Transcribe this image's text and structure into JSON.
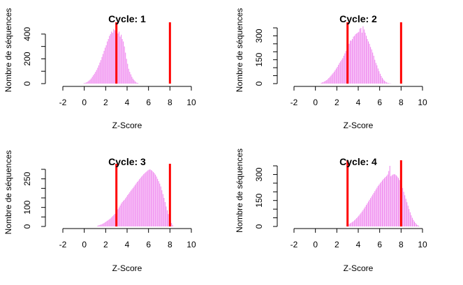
{
  "chart_data": [
    {
      "type": "bar",
      "title": "Cycle: 1",
      "xlabel": "Z-Score",
      "ylabel": "Nombre de séquences",
      "xlim": [
        -2,
        10
      ],
      "xticks": [
        -2,
        0,
        2,
        4,
        6,
        8,
        10
      ],
      "ylim": [
        0,
        450
      ],
      "yticks": [
        0,
        200,
        400
      ],
      "yticks_unlabeled": [
        100,
        300
      ],
      "bin_width": 0.1,
      "x": [
        -0.1,
        0.0,
        0.1,
        0.2,
        0.3,
        0.4,
        0.5,
        0.6,
        0.7,
        0.8,
        0.9,
        1.0,
        1.1,
        1.2,
        1.3,
        1.4,
        1.5,
        1.6,
        1.7,
        1.8,
        1.9,
        2.0,
        2.1,
        2.2,
        2.3,
        2.4,
        2.5,
        2.6,
        2.7,
        2.8,
        2.9,
        3.0,
        3.1,
        3.2,
        3.3,
        3.4,
        3.5,
        3.6,
        3.7,
        3.8,
        3.9,
        4.0,
        4.1,
        4.2,
        4.3,
        4.4,
        4.5,
        4.6,
        4.7,
        4.8,
        4.9,
        5.0
      ],
      "values": [
        3,
        5,
        8,
        12,
        18,
        25,
        32,
        42,
        55,
        68,
        80,
        95,
        110,
        128,
        148,
        170,
        190,
        215,
        240,
        265,
        290,
        310,
        340,
        360,
        385,
        400,
        420,
        410,
        440,
        430,
        415,
        440,
        405,
        420,
        380,
        395,
        360,
        340,
        300,
        250,
        200,
        160,
        120,
        95,
        75,
        55,
        40,
        28,
        18,
        10,
        6,
        3
      ],
      "thresholds": [
        3,
        8
      ],
      "threshold_color": "#ff0000",
      "bar_color": "#ee82ee"
    },
    {
      "type": "bar",
      "title": "Cycle: 2",
      "xlabel": "Z-Score",
      "ylabel": "Nombre de séquences",
      "xlim": [
        -2,
        10
      ],
      "xticks": [
        -2,
        0,
        2,
        4,
        6,
        8,
        10
      ],
      "ylim": [
        0,
        350
      ],
      "yticks": [
        0,
        150,
        300
      ],
      "yticks_unlabeled": [
        50,
        100,
        200,
        250,
        350
      ],
      "bin_width": 0.1,
      "x": [
        0.5,
        0.6,
        0.7,
        0.8,
        0.9,
        1.0,
        1.1,
        1.2,
        1.3,
        1.4,
        1.5,
        1.6,
        1.7,
        1.8,
        1.9,
        2.0,
        2.1,
        2.2,
        2.3,
        2.4,
        2.5,
        2.6,
        2.7,
        2.8,
        2.9,
        3.0,
        3.1,
        3.2,
        3.3,
        3.4,
        3.5,
        3.6,
        3.7,
        3.8,
        3.9,
        4.0,
        4.1,
        4.2,
        4.3,
        4.4,
        4.5,
        4.6,
        4.7,
        4.8,
        4.9,
        5.0,
        5.1,
        5.2,
        5.3,
        5.4,
        5.5,
        5.6,
        5.7,
        5.8,
        5.9,
        6.0,
        6.1,
        6.2,
        6.3,
        6.4,
        6.5,
        6.6,
        6.7,
        6.8,
        6.9,
        7.0
      ],
      "values": [
        5,
        8,
        10,
        14,
        18,
        22,
        28,
        35,
        42,
        50,
        58,
        66,
        75,
        85,
        95,
        105,
        118,
        130,
        140,
        150,
        160,
        175,
        190,
        205,
        215,
        225,
        250,
        270,
        270,
        280,
        295,
        300,
        310,
        315,
        320,
        325,
        345,
        350,
        320,
        360,
        340,
        320,
        300,
        280,
        265,
        250,
        230,
        215,
        195,
        175,
        150,
        130,
        115,
        95,
        78,
        62,
        48,
        36,
        26,
        18,
        12,
        8,
        5,
        3,
        2,
        1
      ],
      "thresholds": [
        3,
        8
      ],
      "threshold_color": "#ff0000",
      "bar_color": "#ee82ee"
    },
    {
      "type": "bar",
      "title": "Cycle: 3",
      "xlabel": "Z-Score",
      "ylabel": "Nombre de séquences",
      "xlim": [
        -2,
        10
      ],
      "xticks": [
        -2,
        0,
        2,
        4,
        6,
        8,
        10
      ],
      "ylim": [
        0,
        300
      ],
      "yticks": [
        0,
        100,
        250
      ],
      "yticks_unlabeled": [
        50,
        150,
        200,
        300
      ],
      "bin_width": 0.1,
      "x": [
        1.2,
        1.3,
        1.4,
        1.5,
        1.6,
        1.7,
        1.8,
        1.9,
        2.0,
        2.1,
        2.2,
        2.3,
        2.4,
        2.5,
        2.6,
        2.7,
        2.8,
        2.9,
        3.0,
        3.1,
        3.2,
        3.3,
        3.4,
        3.5,
        3.6,
        3.7,
        3.8,
        3.9,
        4.0,
        4.1,
        4.2,
        4.3,
        4.4,
        4.5,
        4.6,
        4.7,
        4.8,
        4.9,
        5.0,
        5.1,
        5.2,
        5.3,
        5.4,
        5.5,
        5.6,
        5.7,
        5.8,
        5.9,
        6.0,
        6.1,
        6.2,
        6.3,
        6.4,
        6.5,
        6.6,
        6.7,
        6.8,
        6.9,
        7.0,
        7.1,
        7.2,
        7.3,
        7.4,
        7.5,
        7.6,
        7.7,
        7.8,
        7.9,
        8.0,
        8.1,
        8.2
      ],
      "values": [
        4,
        6,
        8,
        10,
        12,
        15,
        18,
        22,
        26,
        30,
        34,
        38,
        42,
        48,
        54,
        60,
        66,
        72,
        80,
        90,
        100,
        110,
        120,
        128,
        135,
        140,
        148,
        156,
        165,
        172,
        180,
        188,
        195,
        202,
        210,
        218,
        226,
        234,
        240,
        248,
        255,
        262,
        268,
        275,
        280,
        285,
        290,
        295,
        298,
        300,
        296,
        292,
        286,
        280,
        272,
        262,
        250,
        238,
        225,
        210,
        190,
        170,
        150,
        128,
        105,
        85,
        65,
        45,
        30,
        18,
        8
      ],
      "thresholds": [
        3,
        8
      ],
      "threshold_color": "#ff0000",
      "bar_color": "#ee82ee"
    },
    {
      "type": "bar",
      "title": "Cycle: 4",
      "xlabel": "Z-Score",
      "ylabel": "Nombre de séquences",
      "xlim": [
        -2,
        10
      ],
      "xticks": [
        -2,
        0,
        2,
        4,
        6,
        8,
        10
      ],
      "ylim": [
        0,
        350
      ],
      "yticks": [
        0,
        150,
        300
      ],
      "yticks_unlabeled": [
        50,
        100,
        200,
        250,
        350
      ],
      "bin_width": 0.1,
      "x": [
        3.0,
        3.1,
        3.2,
        3.3,
        3.4,
        3.5,
        3.6,
        3.7,
        3.8,
        3.9,
        4.0,
        4.1,
        4.2,
        4.3,
        4.4,
        4.5,
        4.6,
        4.7,
        4.8,
        4.9,
        5.0,
        5.1,
        5.2,
        5.3,
        5.4,
        5.5,
        5.6,
        5.7,
        5.8,
        5.9,
        6.0,
        6.1,
        6.2,
        6.3,
        6.4,
        6.5,
        6.6,
        6.7,
        6.8,
        6.9,
        7.0,
        7.1,
        7.2,
        7.3,
        7.4,
        7.5,
        7.6,
        7.7,
        7.8,
        7.9,
        8.0,
        8.1,
        8.2,
        8.3,
        8.4,
        8.5,
        8.6,
        8.7,
        8.8,
        8.9,
        9.0,
        9.1,
        9.2,
        9.3,
        9.4,
        9.5,
        9.6
      ],
      "values": [
        10,
        14,
        18,
        22,
        26,
        30,
        36,
        42,
        48,
        55,
        62,
        70,
        78,
        86,
        95,
        104,
        114,
        124,
        134,
        144,
        154,
        164,
        174,
        184,
        194,
        204,
        214,
        224,
        234,
        242,
        250,
        258,
        266,
        274,
        280,
        286,
        292,
        300,
        320,
        350,
        290,
        296,
        300,
        302,
        300,
        295,
        288,
        280,
        268,
        255,
        240,
        222,
        200,
        180,
        160,
        140,
        120,
        100,
        82,
        65,
        50,
        38,
        28,
        20,
        12,
        8,
        4
      ],
      "thresholds": [
        3,
        8
      ],
      "threshold_color": "#ff0000",
      "bar_color": "#ee82ee"
    }
  ]
}
